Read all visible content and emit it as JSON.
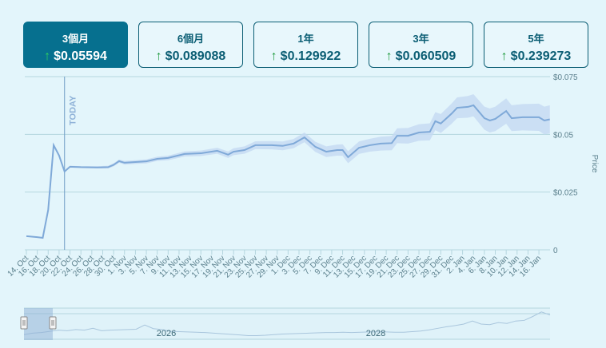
{
  "range_buttons": [
    {
      "label": "3個月",
      "change": "$0.05594",
      "arrow": "↑",
      "active": true
    },
    {
      "label": "6個月",
      "change": "$0.089088",
      "arrow": "↑",
      "active": false
    },
    {
      "label": "1年",
      "change": "$0.129922",
      "arrow": "↑",
      "active": false
    },
    {
      "label": "3年",
      "change": "$0.060509",
      "arrow": "↑",
      "active": false
    },
    {
      "label": "5年",
      "change": "$0.239273",
      "arrow": "↑",
      "active": false
    }
  ],
  "colors": {
    "accent": "#06708f",
    "text": "#0b5e74",
    "up_arrow": "#1c9a3c",
    "line": "#7fa9d8",
    "band": "#c4daf2"
  },
  "chart_data": {
    "type": "line",
    "title": "",
    "xlabel": "",
    "ylabel": "Price",
    "ylim": [
      0,
      0.075
    ],
    "y_ticks": [
      "0",
      "$0.025",
      "$0.05",
      "$0.075"
    ],
    "y_tick_values": [
      0,
      0.025,
      0.05,
      0.075
    ],
    "grid": true,
    "annotation": {
      "label": "TODAY",
      "x": "21. Oct"
    },
    "x_ticks": [
      "14. Oct",
      "16. Oct",
      "18. Oct",
      "20. Oct",
      "22. Oct",
      "24. Oct",
      "26. Oct",
      "28. Oct",
      "30. Oct",
      "1. Nov",
      "3. Nov",
      "5. Nov",
      "7. Nov",
      "9. Nov",
      "11. Nov",
      "13. Nov",
      "15. Nov",
      "17. Nov",
      "19. Nov",
      "21. Nov",
      "23. Nov",
      "25. Nov",
      "27. Nov",
      "29. Nov",
      "1. Dec",
      "3. Dec",
      "5. Dec",
      "7. Dec",
      "9. Dec",
      "11. Dec",
      "13. Dec",
      "15. Dec",
      "17. Dec",
      "19. Dec",
      "21. Dec",
      "23. Dec",
      "25. Dec",
      "27. Dec",
      "29. Dec",
      "31. Dec",
      "2. Jan",
      "4. Jan",
      "6. Jan",
      "8. Jan",
      "10. Jan",
      "12. Jan",
      "14. Jan",
      "16. Jan"
    ],
    "series": [
      {
        "x": [
          "14. Oct",
          "16. Oct",
          "17. Oct",
          "18. Oct",
          "19. Oct",
          "20. Oct",
          "21. Oct",
          "22. Oct",
          "24. Oct",
          "27. Oct",
          "29. Oct",
          "30. Oct",
          "31. Oct",
          "1. Nov",
          "3. Nov",
          "5. Nov",
          "7. Nov",
          "9. Nov",
          "12. Nov",
          "15. Nov",
          "18. Nov",
          "20. Nov",
          "21. Nov",
          "23. Nov",
          "25. Nov",
          "28. Nov",
          "30. Nov",
          "2. Dec",
          "4. Dec",
          "6. Dec",
          "8. Dec",
          "10. Dec",
          "11. Dec",
          "12. Dec",
          "14. Dec",
          "16. Dec",
          "18. Dec",
          "20. Dec",
          "21. Dec",
          "23. Dec",
          "25. Dec",
          "27. Dec",
          "28. Dec",
          "29. Dec",
          "31. Dec",
          "1. Jan",
          "3. Jan",
          "4. Jan",
          "6. Jan",
          "7. Jan",
          "8. Jan",
          "10. Jan",
          "11. Jan",
          "13. Jan",
          "16. Jan",
          "17. Jan",
          "18. Jan"
        ],
        "values": [
          0.0059,
          0.0055,
          0.0052,
          0.0173,
          0.0453,
          0.0408,
          0.0339,
          0.036,
          0.0358,
          0.0357,
          0.0358,
          0.0368,
          0.0384,
          0.0377,
          0.038,
          0.0383,
          0.0394,
          0.0398,
          0.0415,
          0.0418,
          0.0429,
          0.0412,
          0.0425,
          0.0432,
          0.0453,
          0.0453,
          0.045,
          0.046,
          0.0487,
          0.0446,
          0.0425,
          0.0432,
          0.0432,
          0.0401,
          0.0442,
          0.0453,
          0.046,
          0.0462,
          0.0494,
          0.0494,
          0.0508,
          0.0511,
          0.0557,
          0.0547,
          0.059,
          0.0615,
          0.0619,
          0.0626,
          0.057,
          0.056,
          0.0567,
          0.0601,
          0.057,
          0.0574,
          0.0574,
          0.056,
          0.0565
        ],
        "range_low": [
          null,
          null,
          null,
          null,
          null,
          null,
          null,
          0.0356,
          0.0354,
          0.0352,
          0.0352,
          0.0361,
          0.0377,
          0.0369,
          0.0372,
          0.0374,
          0.0385,
          0.0388,
          0.0404,
          0.0406,
          0.0416,
          0.0398,
          0.041,
          0.0416,
          0.0436,
          0.0435,
          0.0431,
          0.044,
          0.0466,
          0.0424,
          0.0402,
          0.0408,
          0.0407,
          0.0375,
          0.0415,
          0.0425,
          0.043,
          0.0431,
          0.0462,
          0.046,
          0.0472,
          0.0474,
          0.0518,
          0.0506,
          0.0546,
          0.057,
          0.0572,
          0.0578,
          0.052,
          0.0508,
          0.0514,
          0.0546,
          0.0514,
          0.0517,
          0.0515,
          0.05,
          0.0504
        ],
        "range_high": [
          null,
          null,
          null,
          null,
          null,
          null,
          null,
          0.0364,
          0.0362,
          0.0362,
          0.0364,
          0.0375,
          0.0391,
          0.0385,
          0.0388,
          0.0392,
          0.0403,
          0.0408,
          0.0426,
          0.043,
          0.0442,
          0.0426,
          0.044,
          0.0448,
          0.047,
          0.0471,
          0.0469,
          0.048,
          0.0508,
          0.0468,
          0.0448,
          0.0456,
          0.0457,
          0.0427,
          0.0469,
          0.0481,
          0.049,
          0.0493,
          0.0526,
          0.0528,
          0.0544,
          0.0548,
          0.0596,
          0.0588,
          0.0634,
          0.066,
          0.0666,
          0.0674,
          0.062,
          0.0612,
          0.062,
          0.0656,
          0.0626,
          0.0631,
          0.0633,
          0.062,
          0.0626
        ]
      }
    ]
  },
  "navigator": {
    "labels": [
      "2026",
      "2028"
    ],
    "values": [
      0.015,
      0.02,
      0.022,
      0.026,
      0.03,
      0.028,
      0.032,
      0.03,
      0.036,
      0.028,
      0.03,
      0.031,
      0.032,
      0.033,
      0.047,
      0.035,
      0.032,
      0.026,
      0.025,
      0.024,
      0.023,
      0.022,
      0.02,
      0.018,
      0.016,
      0.014,
      0.012,
      0.012,
      0.013,
      0.015,
      0.017,
      0.018,
      0.019,
      0.02,
      0.021,
      0.022,
      0.022,
      0.023,
      0.022,
      0.023,
      0.024,
      0.024,
      0.024,
      0.023,
      0.023,
      0.025,
      0.027,
      0.031,
      0.036,
      0.041,
      0.045,
      0.05,
      0.06,
      0.05,
      0.048,
      0.055,
      0.052,
      0.06,
      0.062,
      0.075,
      0.09,
      0.08
    ]
  }
}
